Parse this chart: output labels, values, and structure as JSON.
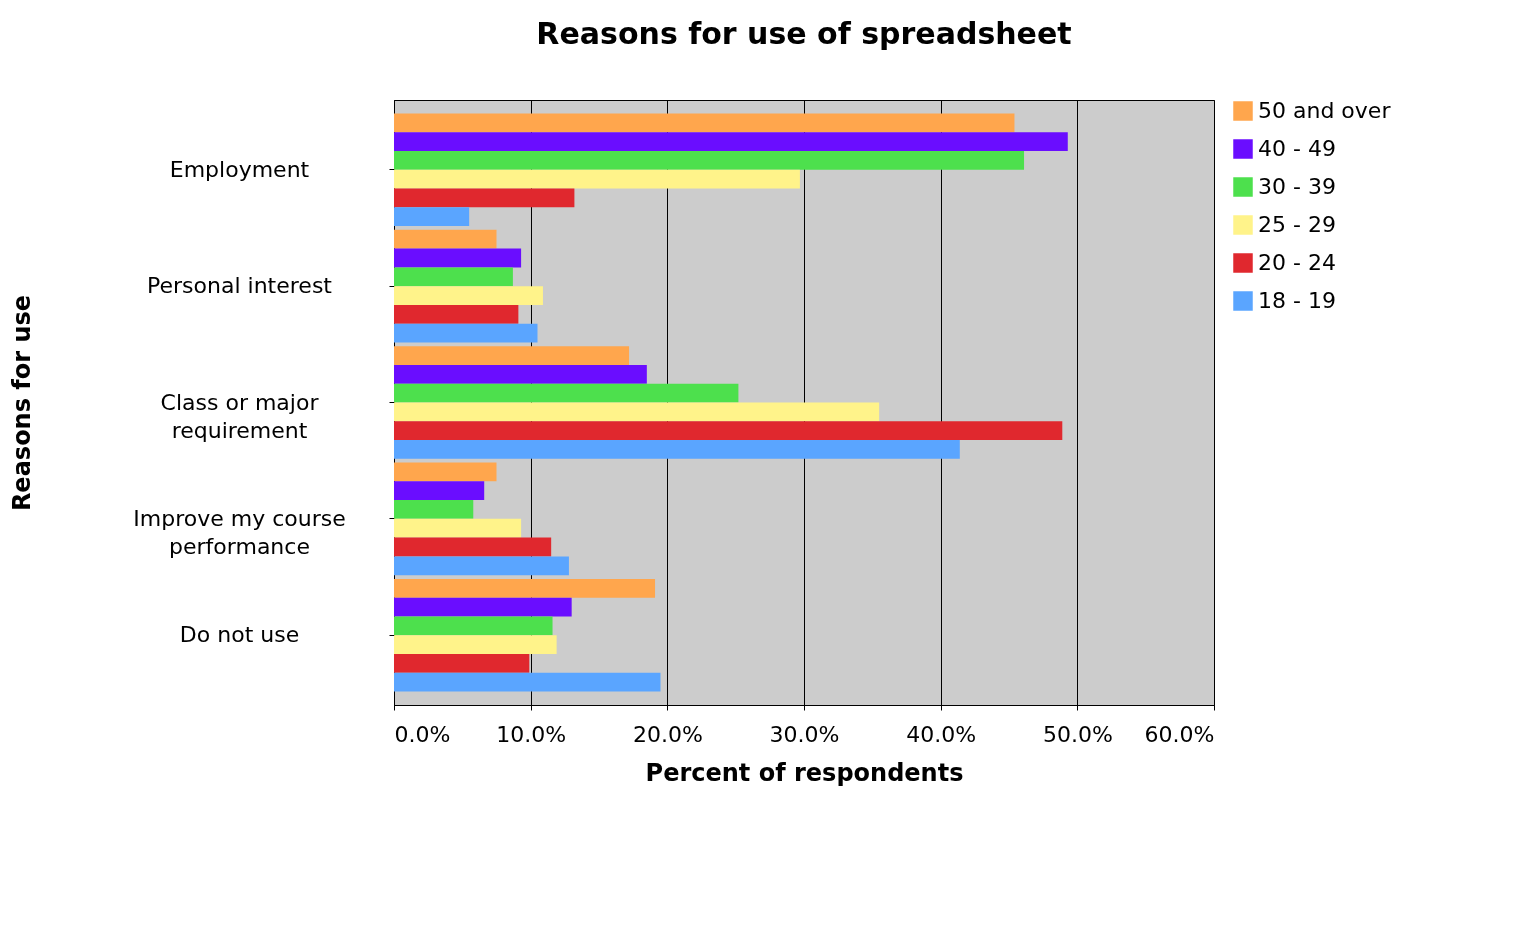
{
  "chart_data": {
    "type": "bar",
    "orientation": "horizontal",
    "title": "Reasons for use of spreadsheet",
    "xlabel": "Percent of respondents",
    "ylabel": "Reasons for use",
    "categories": [
      "Employment",
      "Personal interest",
      "Class or major requirement",
      "Improve my course performance",
      "Do not use"
    ],
    "series": [
      {
        "name": "50 and over",
        "color": "#ffa64d",
        "values": [
          45.4,
          7.5,
          17.2,
          7.5,
          19.1
        ]
      },
      {
        "name": "40 - 49",
        "color": "#6a0dff",
        "values": [
          49.3,
          9.3,
          18.5,
          6.6,
          13.0
        ]
      },
      {
        "name": "30 - 39",
        "color": "#4de04d",
        "values": [
          46.1,
          8.7,
          25.2,
          5.8,
          11.6
        ]
      },
      {
        "name": "25 - 29",
        "color": "#fff38a",
        "values": [
          29.7,
          10.9,
          35.5,
          9.3,
          11.9
        ]
      },
      {
        "name": "20 - 24",
        "color": "#e0282e",
        "values": [
          13.2,
          9.1,
          48.9,
          11.5,
          9.9
        ]
      },
      {
        "name": "18 - 19",
        "color": "#5aa5ff",
        "values": [
          5.5,
          10.5,
          41.4,
          12.8,
          19.5
        ]
      }
    ],
    "xlim": [
      0,
      60
    ],
    "xticks": [
      {
        "value": 0,
        "label": "0.0%"
      },
      {
        "value": 10,
        "label": "10.0%"
      },
      {
        "value": 20,
        "label": "20.0%"
      },
      {
        "value": 30,
        "label": "30.0%"
      },
      {
        "value": 40,
        "label": "40.0%"
      },
      {
        "value": 50,
        "label": "50.0%"
      },
      {
        "value": 60,
        "label": "60.0%"
      }
    ],
    "grid": "x",
    "legend": "right"
  }
}
